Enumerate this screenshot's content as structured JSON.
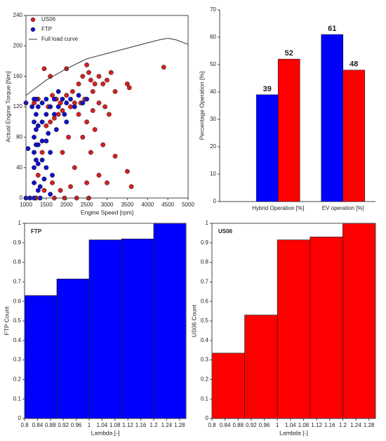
{
  "chart_data": [
    {
      "type": "scatter",
      "xlabel": "Engine Speed [rpm]",
      "ylabel": "Actual Engine Torque [Nm]",
      "xlim": [
        1000,
        5000
      ],
      "xticks": [
        1000,
        1500,
        2000,
        2500,
        3000,
        3500,
        4000,
        4500,
        5000
      ],
      "ylim": [
        0,
        240
      ],
      "yticks": [
        0,
        40,
        80,
        120,
        160,
        200,
        240
      ],
      "legend": "upper left",
      "series": [
        {
          "name": "US06",
          "color": "#d42020",
          "kind": "scatter",
          "x": [
            1450,
            1600,
            2000,
            2300,
            2400,
            2500,
            2550,
            2600,
            2700,
            2800,
            2900,
            3000,
            3100,
            3200,
            3500,
            3550,
            4400,
            2650,
            2450,
            2200,
            2100,
            1900,
            1800,
            1700,
            1600,
            1500,
            2000,
            2300,
            2500,
            2700,
            2900,
            3200,
            3500,
            3600,
            2500,
            2200,
            1900,
            2050,
            1750,
            1550,
            1400,
            1300,
            1450,
            1650,
            1850,
            2100,
            2400,
            2600,
            2800,
            3000,
            1700,
            1950,
            2250,
            2550,
            1250,
            2350,
            2150,
            1850,
            1650,
            2650,
            2950,
            3050,
            2800,
            1300,
            1200
          ],
          "values": [
            170,
            160,
            170,
            150,
            160,
            175,
            165,
            155,
            150,
            160,
            150,
            155,
            165,
            140,
            150,
            145,
            172,
            140,
            130,
            125,
            120,
            115,
            110,
            105,
            100,
            95,
            135,
            110,
            100,
            90,
            70,
            55,
            35,
            15,
            20,
            40,
            60,
            80,
            130,
            120,
            60,
            30,
            10,
            20,
            10,
            15,
            80,
            60,
            30,
            20,
            0,
            0,
            0,
            0,
            0,
            125,
            140,
            125,
            135,
            115,
            120,
            110,
            125,
            130,
            125
          ]
        },
        {
          "name": "FTP",
          "color": "#1010c8",
          "kind": "scatter",
          "x": [
            1000,
            1050,
            1150,
            1200,
            1200,
            1200,
            1200,
            1200,
            1200,
            1200,
            1250,
            1250,
            1250,
            1250,
            1250,
            1300,
            1300,
            1300,
            1300,
            1300,
            1400,
            1400,
            1400,
            1400,
            1450,
            1500,
            1500,
            1550,
            1600,
            1600,
            1700,
            1700,
            1750,
            1800,
            1900,
            1950,
            2000,
            2100,
            2200,
            2300,
            2400,
            2500,
            1350,
            1350,
            1500,
            1650,
            1000,
            1100,
            1600,
            1800,
            2000,
            1500
          ],
          "values": [
            125,
            65,
            120,
            130,
            100,
            80,
            60,
            40,
            20,
            0,
            130,
            110,
            90,
            70,
            50,
            120,
            95,
            70,
            45,
            10,
            125,
            100,
            75,
            50,
            25,
            130,
            110,
            85,
            60,
            120,
            130,
            110,
            90,
            120,
            130,
            110,
            125,
            130,
            120,
            135,
            125,
            130,
            15,
            0,
            40,
            30,
            0,
            0,
            5,
            140,
            100,
            75
          ]
        },
        {
          "name": "Full load curve",
          "color": "#333333",
          "kind": "line",
          "x": [
            1000,
            1500,
            2000,
            2500,
            3000,
            3500,
            4000,
            4300,
            4500,
            4700,
            5000
          ],
          "values": [
            135,
            155,
            170,
            183,
            190,
            197,
            204,
            208,
            210,
            208,
            202
          ]
        }
      ]
    },
    {
      "type": "bar",
      "ylabel": "Percentage Operation [%]",
      "categories": [
        "Hybrid Operation [%]",
        "EV operation [%]"
      ],
      "ylim": [
        0,
        70
      ],
      "yticks": [
        0,
        10,
        20,
        30,
        40,
        50,
        60,
        70
      ],
      "series": [
        {
          "color": "#0000ff",
          "values": [
            39,
            61
          ]
        },
        {
          "color": "#ff0000",
          "values": [
            52,
            48
          ]
        }
      ]
    },
    {
      "type": "histogram",
      "title": "FTP",
      "xlabel": "Lambda [-]",
      "ylabel": "FTP Count",
      "color": "#0000ff",
      "bins": [
        0.8,
        0.9,
        1.0,
        1.1,
        1.2,
        1.3
      ],
      "values": [
        0.63,
        0.715,
        0.915,
        0.92,
        1.0
      ],
      "xlim": [
        0.8,
        1.3
      ],
      "xticks": [
        0.8,
        0.84,
        0.88,
        0.92,
        0.96,
        1,
        1.04,
        1.08,
        1.12,
        1.16,
        1.2,
        1.24,
        1.28
      ],
      "ylim": [
        0,
        1
      ],
      "yticks": [
        0,
        0.1,
        0.2,
        0.3,
        0.4,
        0.5,
        0.6,
        0.7,
        0.8,
        0.9,
        1
      ]
    },
    {
      "type": "histogram",
      "title": "US06",
      "xlabel": "Lambda [-]",
      "ylabel": "US06 Count",
      "color": "#ff0000",
      "bins": [
        0.8,
        0.9,
        1.0,
        1.1,
        1.2,
        1.3
      ],
      "values": [
        0.335,
        0.53,
        0.915,
        0.93,
        1.0
      ],
      "xlim": [
        0.8,
        1.3
      ],
      "xticks": [
        0.8,
        0.84,
        0.88,
        0.92,
        0.96,
        1,
        1.04,
        1.08,
        1.12,
        1.16,
        1.2,
        1.24,
        1.28
      ],
      "ylim": [
        0,
        1
      ],
      "yticks": [
        0,
        0.1,
        0.2,
        0.3,
        0.4,
        0.5,
        0.6,
        0.7,
        0.8,
        0.9,
        1
      ]
    }
  ]
}
